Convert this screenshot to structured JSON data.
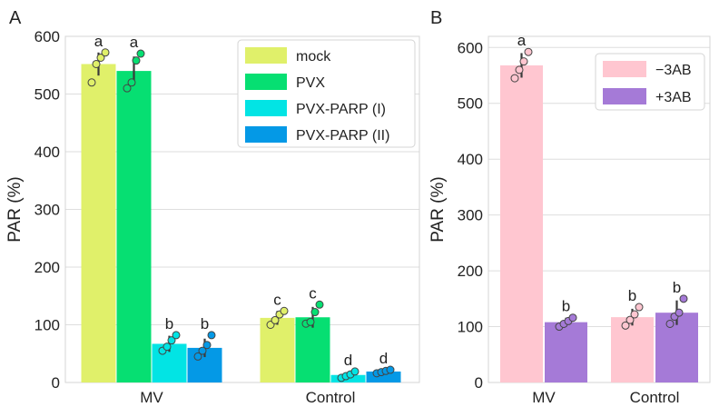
{
  "chart_data": [
    {
      "panel_label": "A",
      "type": "bar",
      "ylabel": "PAR (%)",
      "xlabel": "",
      "ylim": [
        0,
        600
      ],
      "yticks": [
        0,
        100,
        200,
        300,
        400,
        500,
        600
      ],
      "grid": "horizontal",
      "categories": [
        "MV",
        "Control"
      ],
      "legend_position": "top-right",
      "series": [
        {
          "name": "mock",
          "color": "#e0f06a",
          "values": [
            552,
            112
          ],
          "errors": [
            20,
            12
          ],
          "letters": [
            "a",
            "c"
          ],
          "points": [
            [
              520,
              552,
              563,
              572
            ],
            [
              100,
              108,
              118,
              124
            ]
          ]
        },
        {
          "name": "PVX",
          "color": "#06df72",
          "values": [
            540,
            113
          ],
          "errors": [
            25,
            18
          ],
          "letters": [
            "a",
            "c"
          ],
          "points": [
            [
              510,
              520,
              558,
              570
            ],
            [
              102,
              105,
              122,
              135
            ]
          ]
        },
        {
          "name": "PVX-PARP (I)",
          "color": "#02e4e4",
          "values": [
            67,
            13
          ],
          "errors": [
            14,
            5
          ],
          "letters": [
            "b",
            "d"
          ],
          "points": [
            [
              55,
              62,
              73,
              82
            ],
            [
              8,
              11,
              14,
              19
            ]
          ]
        },
        {
          "name": "PVX-PARP (II)",
          "color": "#0499e6",
          "values": [
            60,
            19
          ],
          "errors": [
            16,
            3
          ],
          "letters": [
            "b",
            "d"
          ],
          "points": [
            [
              45,
              55,
              65,
              82
            ],
            [
              16,
              18,
              20,
              22
            ]
          ]
        }
      ]
    },
    {
      "panel_label": "B",
      "type": "bar",
      "ylabel": "PAR (%)",
      "xlabel": "",
      "ylim": [
        0,
        620
      ],
      "yticks": [
        0,
        100,
        200,
        300,
        400,
        500,
        600
      ],
      "grid": "horizontal",
      "categories": [
        "MV",
        "Control"
      ],
      "legend_position": "top-right",
      "series": [
        {
          "name": "−3AB",
          "color": "#ffc6d0",
          "values": [
            568,
            117
          ],
          "errors": [
            22,
            15
          ],
          "letters": [
            "a",
            "b"
          ],
          "points": [
            [
              545,
              560,
              575,
              592
            ],
            [
              102,
              112,
              122,
              135
            ]
          ]
        },
        {
          "name": "+3AB",
          "color": "#a57ad7",
          "values": [
            108,
            125
          ],
          "errors": [
            8,
            22
          ],
          "letters": [
            "b",
            "b"
          ],
          "points": [
            [
              100,
              105,
              110,
              116
            ],
            [
              105,
              118,
              125,
              150
            ]
          ]
        }
      ]
    }
  ]
}
